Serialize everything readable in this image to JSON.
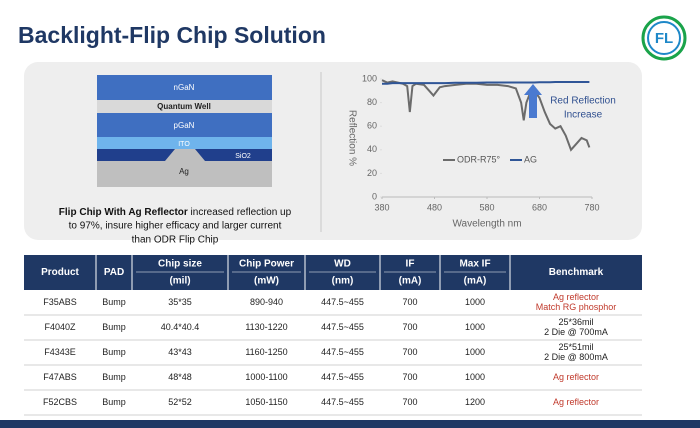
{
  "header": {
    "title": "Backlight-Flip Chip Solution",
    "logo": "FL"
  },
  "diagram": {
    "layers": [
      "nGaN",
      "Quantum Well",
      "pGaN",
      "ITO",
      "SiO2",
      "Ag"
    ],
    "caption_bold": "Flip Chip With Ag Reflector",
    "caption_lines": [
      " increased reflection up",
      "to 97%, insure higher efficacy and larger current",
      "than ODR Flip Chip"
    ]
  },
  "chart_data": {
    "type": "line",
    "xlabel": "Wavelength nm",
    "ylabel": "Reflection %",
    "annotation": [
      "Red Reflection",
      "Increase"
    ],
    "x": [
      380,
      390,
      400,
      420,
      428,
      433,
      438,
      445,
      460,
      470,
      478,
      490,
      500,
      520,
      540,
      560,
      580,
      600,
      620,
      635,
      645,
      650,
      655,
      662,
      670,
      680,
      690,
      700,
      710,
      720,
      730,
      740,
      750,
      760,
      770,
      775
    ],
    "series": [
      {
        "name": "ODR-R75°",
        "color": "#6b6b6b",
        "values": [
          99,
          97,
          98,
          96,
          94,
          72,
          94,
          96,
          95,
          90,
          86,
          93,
          94,
          95,
          96,
          96,
          95,
          95,
          94,
          92,
          80,
          65,
          80,
          88,
          90,
          84,
          72,
          62,
          58,
          60,
          52,
          40,
          45,
          50,
          48,
          42
        ]
      },
      {
        "name": "AG",
        "color": "#2f5597",
        "values": [
          96,
          96,
          96.5,
          96.5,
          96.5,
          96.5,
          96.5,
          96.5,
          96.5,
          96.5,
          96.5,
          96.5,
          96.5,
          96.8,
          96.8,
          96.8,
          97,
          97,
          97,
          97,
          97,
          97,
          97,
          97,
          97,
          97.2,
          97.2,
          97.2,
          97.5,
          97.5,
          97.5,
          97.5,
          97.5,
          97.5,
          97.5,
          97.5
        ]
      }
    ],
    "xlim": [
      380,
      780
    ],
    "ylim": [
      0,
      100
    ],
    "xticks": [
      380,
      480,
      580,
      680,
      780
    ],
    "yticks": [
      0,
      20,
      40,
      60,
      80,
      100
    ]
  },
  "table": {
    "headers": [
      "Product",
      "PAD",
      [
        "Chip size",
        "(mil)"
      ],
      [
        "Chip Power",
        "(mW)"
      ],
      [
        "WD",
        "(nm)"
      ],
      [
        "IF",
        "(mA)"
      ],
      [
        "Max IF",
        "(mA)"
      ],
      "Benchmark"
    ],
    "rows": [
      [
        "F35ABS",
        "Bump",
        "35*35",
        "890-940",
        "447.5~455",
        "700",
        "1000",
        [
          "Ag reflector",
          "Match RG phosphor"
        ]
      ],
      [
        "F4040Z",
        "Bump",
        "40.4*40.4",
        "1130-1220",
        "447.5~455",
        "700",
        "1000",
        [
          "25*36mil",
          "2 Die @ 700mA"
        ]
      ],
      [
        "F4343E",
        "Bump",
        "43*43",
        "1160-1250",
        "447.5~455",
        "700",
        "1000",
        [
          "25*51mil",
          "2 Die @ 800mA"
        ]
      ],
      [
        "F47ABS",
        "Bump",
        "48*48",
        "1000-1100",
        "447.5~455",
        "700",
        "1000",
        [
          "Ag reflector"
        ]
      ],
      [
        "F52CBS",
        "Bump",
        "52*52",
        "1050-1150",
        "447.5~455",
        "700",
        "1200",
        [
          "Ag reflector"
        ]
      ]
    ],
    "benchmark_colors": [
      "#c0392b",
      "#222222",
      "#222222",
      "#c0392b",
      "#c0392b"
    ]
  }
}
